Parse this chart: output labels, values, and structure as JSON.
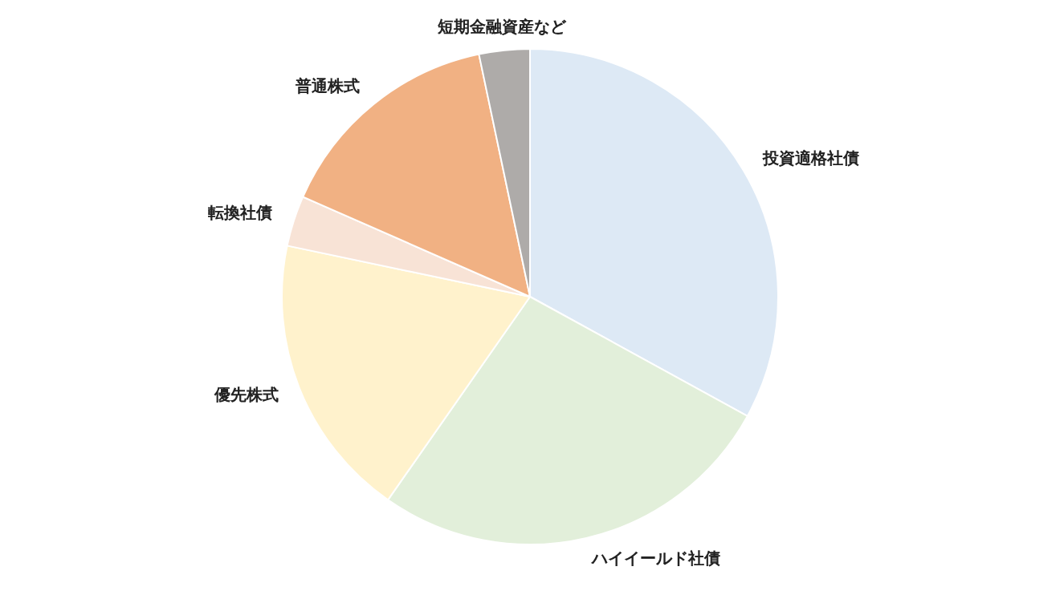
{
  "chart_data": {
    "type": "pie",
    "categories": [
      "投資適格社債",
      "ハイイールド社債",
      "優先株式",
      "転換社債",
      "普通株式",
      "短期金融資産など"
    ],
    "values": [
      33.0,
      26.7,
      18.6,
      3.3,
      15.1,
      3.3
    ],
    "colors": [
      "#dde9f5",
      "#e2efda",
      "#fff2cc",
      "#f8e3d6",
      "#f1b183",
      "#aeaba9"
    ],
    "legend": false
  }
}
